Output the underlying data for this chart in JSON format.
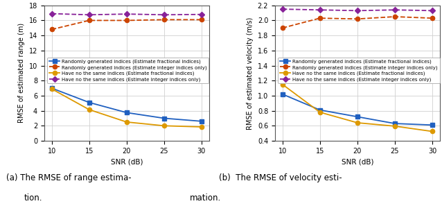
{
  "snr": [
    10,
    15,
    20,
    25,
    30
  ],
  "range": {
    "blue_solid": [
      7.0,
      5.1,
      3.75,
      3.0,
      2.6
    ],
    "red_dashed": [
      14.8,
      16.0,
      16.0,
      16.1,
      16.1
    ],
    "orange_solid": [
      6.9,
      4.15,
      2.5,
      2.0,
      1.85
    ],
    "purple_dashed": [
      16.9,
      16.75,
      16.85,
      16.75,
      16.8
    ],
    "ylabel": "RMSE of estimated range (m)",
    "ylim": [
      0,
      18
    ],
    "yticks": [
      0,
      2,
      4,
      6,
      8,
      10,
      12,
      14,
      16,
      18
    ]
  },
  "velocity": {
    "blue_solid": [
      1.02,
      0.81,
      0.72,
      0.63,
      0.61
    ],
    "red_dashed": [
      1.9,
      2.03,
      2.02,
      2.05,
      2.03
    ],
    "orange_solid": [
      1.15,
      0.78,
      0.64,
      0.595,
      0.525
    ],
    "purple_dashed": [
      2.15,
      2.14,
      2.13,
      2.14,
      2.13
    ],
    "ylabel": "RMSE of estimated velocity (m/s)",
    "ylim": [
      0.4,
      2.2
    ],
    "yticks": [
      0.4,
      0.6,
      0.8,
      1.0,
      1.2,
      1.4,
      1.6,
      1.8,
      2.0,
      2.2
    ]
  },
  "legend_labels": [
    "Randomly generated indices (Estimate fractional indices)",
    "Randomly generated indices (Estimate integer indices only)",
    "Have no the same indices (Estimate fractional indices)",
    "Have no the same indices (Estimate integer indices only)"
  ],
  "colors": {
    "blue": "#2060C0",
    "red": "#CC4400",
    "orange": "#DD9900",
    "purple": "#882299"
  },
  "xlabel": "SNR (dB)",
  "xticks": [
    10,
    15,
    20,
    25,
    30
  ],
  "grid_color": "#d0d0d0",
  "background": "#ffffff",
  "caption_a1": "(a) The RMSE of range estima-",
  "caption_a2": "tion.",
  "caption_b1": "(b)  The RMSE of velocity esti-",
  "caption_b2": "mation."
}
